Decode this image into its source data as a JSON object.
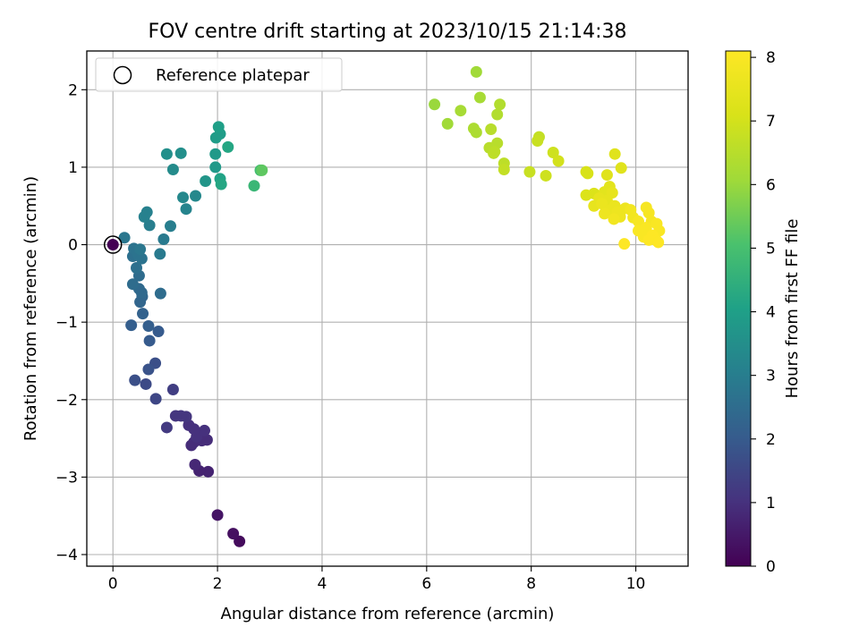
{
  "chart_data": {
    "type": "scatter",
    "title": "FOV centre drift starting at 2023/10/15 21:14:38",
    "xlabel": "Angular distance from reference (arcmin)",
    "ylabel": "Rotation from reference (arcmin)",
    "xlim": [
      -0.5,
      11
    ],
    "ylim": [
      -4.15,
      2.5
    ],
    "x_ticks": [
      "0",
      "2",
      "4",
      "6",
      "8",
      "10"
    ],
    "y_ticks": [
      "−4",
      "−3",
      "−2",
      "−1",
      "0",
      "1",
      "2"
    ],
    "grid": true,
    "legend": {
      "location": "upper left",
      "entries": [
        "Reference platepar"
      ]
    },
    "colorbar": {
      "label": "Hours from first FF file",
      "range": [
        0,
        8.1
      ],
      "ticks": [
        "0",
        "1",
        "2",
        "3",
        "4",
        "5",
        "6",
        "7",
        "8"
      ],
      "colormap": "viridis"
    },
    "reference_point": {
      "x": 0,
      "y": 0
    },
    "points": [
      {
        "x": 2.42,
        "y": -3.83,
        "h": 0.2
      },
      {
        "x": 2.3,
        "y": -3.73,
        "h": 0.3
      },
      {
        "x": 2.0,
        "y": -3.49,
        "h": 0.4
      },
      {
        "x": 1.82,
        "y": -2.93,
        "h": 0.7
      },
      {
        "x": 1.65,
        "y": -2.92,
        "h": 0.7
      },
      {
        "x": 1.57,
        "y": -2.84,
        "h": 0.8
      },
      {
        "x": 1.5,
        "y": -2.59,
        "h": 0.9
      },
      {
        "x": 1.55,
        "y": -2.55,
        "h": 0.9
      },
      {
        "x": 1.7,
        "y": -2.53,
        "h": 0.9
      },
      {
        "x": 1.8,
        "y": -2.52,
        "h": 0.9
      },
      {
        "x": 1.6,
        "y": -2.48,
        "h": 1.0
      },
      {
        "x": 1.75,
        "y": -2.4,
        "h": 1.0
      },
      {
        "x": 1.55,
        "y": -2.38,
        "h": 1.0
      },
      {
        "x": 1.45,
        "y": -2.33,
        "h": 1.0
      },
      {
        "x": 1.4,
        "y": -2.22,
        "h": 1.1
      },
      {
        "x": 1.3,
        "y": -2.21,
        "h": 1.1
      },
      {
        "x": 1.2,
        "y": -2.21,
        "h": 1.1
      },
      {
        "x": 1.03,
        "y": -2.36,
        "h": 1.2
      },
      {
        "x": 1.15,
        "y": -1.87,
        "h": 1.3
      },
      {
        "x": 0.82,
        "y": -1.99,
        "h": 1.5
      },
      {
        "x": 0.63,
        "y": -1.8,
        "h": 1.6
      },
      {
        "x": 0.42,
        "y": -1.75,
        "h": 1.7
      },
      {
        "x": 0.81,
        "y": -1.53,
        "h": 1.7
      },
      {
        "x": 0.68,
        "y": -1.61,
        "h": 1.8
      },
      {
        "x": 0.7,
        "y": -1.24,
        "h": 2.0
      },
      {
        "x": 0.87,
        "y": -1.12,
        "h": 2.0
      },
      {
        "x": 0.68,
        "y": -1.05,
        "h": 2.1
      },
      {
        "x": 0.35,
        "y": -1.04,
        "h": 2.1
      },
      {
        "x": 0.57,
        "y": -0.89,
        "h": 2.2
      },
      {
        "x": 0.52,
        "y": -0.74,
        "h": 2.3
      },
      {
        "x": 0.56,
        "y": -0.67,
        "h": 2.3
      },
      {
        "x": 0.55,
        "y": -0.62,
        "h": 2.4
      },
      {
        "x": 0.91,
        "y": -0.63,
        "h": 2.5
      },
      {
        "x": 0.5,
        "y": -0.57,
        "h": 2.4
      },
      {
        "x": 0.38,
        "y": -0.51,
        "h": 2.5
      },
      {
        "x": 0.5,
        "y": -0.4,
        "h": 2.5
      },
      {
        "x": 0.45,
        "y": -0.3,
        "h": 2.6
      },
      {
        "x": 0.38,
        "y": -0.15,
        "h": 2.6
      },
      {
        "x": 0.48,
        "y": -0.13,
        "h": 2.7
      },
      {
        "x": 0.55,
        "y": -0.18,
        "h": 2.7
      },
      {
        "x": 0.4,
        "y": -0.05,
        "h": 2.7
      },
      {
        "x": 0.52,
        "y": -0.06,
        "h": 2.8
      },
      {
        "x": 0.22,
        "y": 0.09,
        "h": 2.8
      },
      {
        "x": 0.9,
        "y": -0.12,
        "h": 2.9
      },
      {
        "x": 0.97,
        "y": 0.07,
        "h": 2.9
      },
      {
        "x": 1.1,
        "y": 0.24,
        "h": 3.0
      },
      {
        "x": 0.7,
        "y": 0.25,
        "h": 3.0
      },
      {
        "x": 0.6,
        "y": 0.36,
        "h": 3.1
      },
      {
        "x": 0.65,
        "y": 0.42,
        "h": 3.1
      },
      {
        "x": 1.4,
        "y": 0.46,
        "h": 3.2
      },
      {
        "x": 1.34,
        "y": 0.61,
        "h": 3.3
      },
      {
        "x": 1.58,
        "y": 0.63,
        "h": 3.3
      },
      {
        "x": 1.15,
        "y": 0.97,
        "h": 3.4
      },
      {
        "x": 1.03,
        "y": 1.17,
        "h": 3.5
      },
      {
        "x": 1.3,
        "y": 1.18,
        "h": 3.5
      },
      {
        "x": 1.77,
        "y": 0.82,
        "h": 3.7
      },
      {
        "x": 1.96,
        "y": 1.0,
        "h": 3.8
      },
      {
        "x": 1.96,
        "y": 1.17,
        "h": 3.8
      },
      {
        "x": 1.97,
        "y": 1.38,
        "h": 3.9
      },
      {
        "x": 2.05,
        "y": 1.43,
        "h": 3.9
      },
      {
        "x": 2.02,
        "y": 1.52,
        "h": 4.0
      },
      {
        "x": 2.05,
        "y": 0.85,
        "h": 4.1
      },
      {
        "x": 2.07,
        "y": 0.78,
        "h": 4.2
      },
      {
        "x": 2.2,
        "y": 1.26,
        "h": 4.2
      },
      {
        "x": 2.7,
        "y": 0.76,
        "h": 4.7
      },
      {
        "x": 2.82,
        "y": 0.96,
        "h": 4.9
      },
      {
        "x": 2.85,
        "y": 0.96,
        "h": 5.3
      },
      {
        "x": 6.95,
        "y": 2.23,
        "h": 6.1
      },
      {
        "x": 6.15,
        "y": 1.81,
        "h": 6.0
      },
      {
        "x": 7.02,
        "y": 1.9,
        "h": 6.2
      },
      {
        "x": 6.65,
        "y": 1.73,
        "h": 6.2
      },
      {
        "x": 6.4,
        "y": 1.56,
        "h": 6.1
      },
      {
        "x": 6.9,
        "y": 1.5,
        "h": 6.3
      },
      {
        "x": 6.95,
        "y": 1.45,
        "h": 6.3
      },
      {
        "x": 7.4,
        "y": 1.81,
        "h": 6.4
      },
      {
        "x": 7.35,
        "y": 1.68,
        "h": 6.4
      },
      {
        "x": 7.23,
        "y": 1.49,
        "h": 6.5
      },
      {
        "x": 7.35,
        "y": 1.31,
        "h": 6.5
      },
      {
        "x": 7.2,
        "y": 1.25,
        "h": 6.5
      },
      {
        "x": 7.3,
        "y": 1.2,
        "h": 6.6
      },
      {
        "x": 7.28,
        "y": 1.18,
        "h": 6.6
      },
      {
        "x": 7.48,
        "y": 1.05,
        "h": 6.6
      },
      {
        "x": 7.48,
        "y": 0.97,
        "h": 6.7
      },
      {
        "x": 8.15,
        "y": 1.39,
        "h": 6.7
      },
      {
        "x": 8.12,
        "y": 1.34,
        "h": 6.8
      },
      {
        "x": 7.97,
        "y": 0.94,
        "h": 6.8
      },
      {
        "x": 8.28,
        "y": 0.89,
        "h": 6.9
      },
      {
        "x": 8.42,
        "y": 1.19,
        "h": 6.9
      },
      {
        "x": 8.52,
        "y": 1.08,
        "h": 7.0
      },
      {
        "x": 9.05,
        "y": 0.94,
        "h": 7.1
      },
      {
        "x": 9.08,
        "y": 0.92,
        "h": 7.1
      },
      {
        "x": 9.05,
        "y": 0.64,
        "h": 7.2
      },
      {
        "x": 9.2,
        "y": 0.66,
        "h": 7.2
      },
      {
        "x": 9.6,
        "y": 1.17,
        "h": 7.3
      },
      {
        "x": 9.72,
        "y": 0.99,
        "h": 7.3
      },
      {
        "x": 9.45,
        "y": 0.9,
        "h": 7.3
      },
      {
        "x": 9.5,
        "y": 0.75,
        "h": 7.4
      },
      {
        "x": 9.4,
        "y": 0.68,
        "h": 7.4
      },
      {
        "x": 9.55,
        "y": 0.67,
        "h": 7.5
      },
      {
        "x": 9.3,
        "y": 0.6,
        "h": 7.5
      },
      {
        "x": 9.45,
        "y": 0.57,
        "h": 7.5
      },
      {
        "x": 9.2,
        "y": 0.5,
        "h": 7.5
      },
      {
        "x": 9.35,
        "y": 0.53,
        "h": 7.6
      },
      {
        "x": 9.6,
        "y": 0.5,
        "h": 7.6
      },
      {
        "x": 9.5,
        "y": 0.45,
        "h": 7.6
      },
      {
        "x": 9.8,
        "y": 0.47,
        "h": 7.7
      },
      {
        "x": 9.65,
        "y": 0.42,
        "h": 7.7
      },
      {
        "x": 9.4,
        "y": 0.4,
        "h": 7.7
      },
      {
        "x": 9.7,
        "y": 0.36,
        "h": 7.7
      },
      {
        "x": 9.58,
        "y": 0.33,
        "h": 7.8
      },
      {
        "x": 9.9,
        "y": 0.45,
        "h": 7.8
      },
      {
        "x": 9.95,
        "y": 0.35,
        "h": 7.8
      },
      {
        "x": 10.2,
        "y": 0.48,
        "h": 7.9
      },
      {
        "x": 10.25,
        "y": 0.41,
        "h": 7.9
      },
      {
        "x": 10.05,
        "y": 0.3,
        "h": 7.9
      },
      {
        "x": 10.3,
        "y": 0.3,
        "h": 7.9
      },
      {
        "x": 10.4,
        "y": 0.27,
        "h": 8.0
      },
      {
        "x": 10.2,
        "y": 0.22,
        "h": 8.0
      },
      {
        "x": 10.05,
        "y": 0.18,
        "h": 8.0
      },
      {
        "x": 10.45,
        "y": 0.18,
        "h": 8.0
      },
      {
        "x": 10.15,
        "y": 0.1,
        "h": 8.0
      },
      {
        "x": 10.32,
        "y": 0.12,
        "h": 8.1
      },
      {
        "x": 10.4,
        "y": 0.05,
        "h": 8.1
      },
      {
        "x": 10.25,
        "y": 0.06,
        "h": 8.1
      },
      {
        "x": 9.78,
        "y": 0.01,
        "h": 8.1
      },
      {
        "x": 10.43,
        "y": 0.03,
        "h": 8.1
      }
    ]
  }
}
